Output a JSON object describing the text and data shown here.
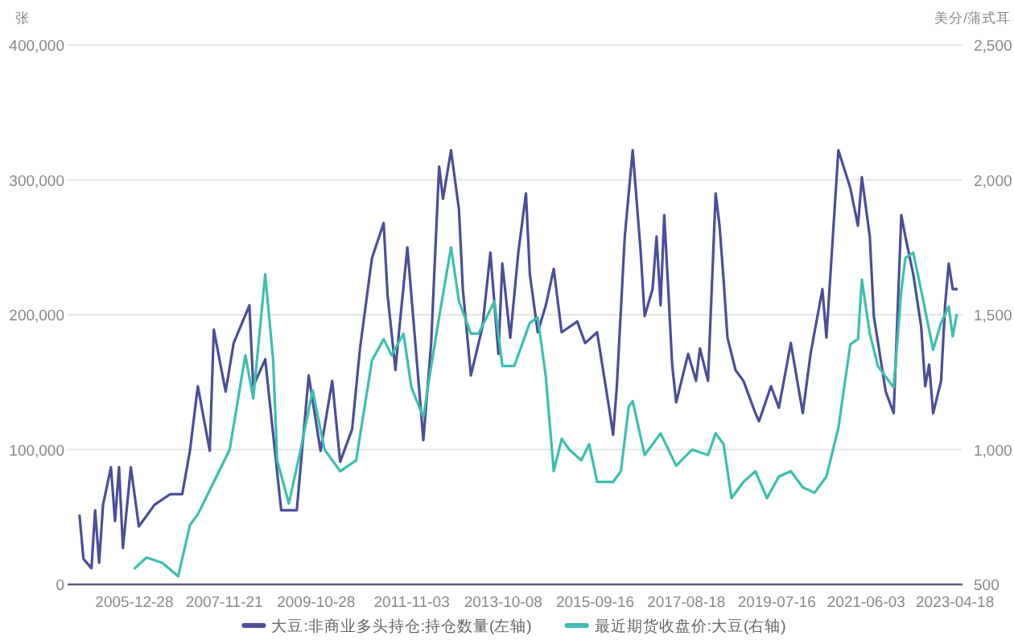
{
  "chart_data": {
    "type": "line",
    "ylabel": "张",
    "y2label": "美分/蒲式耳",
    "xlim": [
      "2004-08-01",
      "2023-06-15"
    ],
    "xticks": [
      "2005-12-28",
      "2007-11-21",
      "2009-10-28",
      "2011-11-03",
      "2013-10-08",
      "2015-09-16",
      "2017-08-18",
      "2019-07-16",
      "2021-06-03",
      "2023-04-18"
    ],
    "ylim": [
      0,
      400000
    ],
    "yticks": [
      0,
      {
        "value": 100000,
        "label": "100,000"
      },
      {
        "value": 200000,
        "label": "200,000"
      },
      {
        "value": 300000,
        "label": "300,000"
      },
      {
        "value": 400000,
        "label": "400,000"
      }
    ],
    "y2lim": [
      500,
      2500
    ],
    "y2ticks": [
      500,
      {
        "value": 1000,
        "label": "1,000"
      },
      {
        "value": 1500,
        "label": "1,500"
      },
      {
        "value": 2000,
        "label": "2,000"
      },
      {
        "value": 2500,
        "label": "2,500"
      }
    ],
    "grid": "y",
    "legend": "bottom",
    "series": [
      {
        "name": "大豆:非商业多头持仓:持仓数量(左轴)",
        "color": "#4a4e9a",
        "axis": "y",
        "x": [
          "2004-11",
          "2004-12",
          "2005-02",
          "2005-03",
          "2005-04",
          "2005-05",
          "2005-07",
          "2005-08",
          "2005-09",
          "2005-10",
          "2005-12",
          "2006-02",
          "2006-06",
          "2006-10",
          "2007-01",
          "2007-03",
          "2007-05",
          "2007-08",
          "2007-09",
          "2007-12",
          "2008-02",
          "2008-06",
          "2008-07",
          "2008-10",
          "2009-02",
          "2009-06",
          "2009-09",
          "2009-12",
          "2010-03",
          "2010-05",
          "2010-08",
          "2010-10",
          "2011-01",
          "2011-04",
          "2011-05",
          "2011-07",
          "2011-08",
          "2011-10",
          "2011-12",
          "2012-02",
          "2012-04",
          "2012-06",
          "2012-07",
          "2012-09",
          "2012-11",
          "2012-12",
          "2013-02",
          "2013-05",
          "2013-07",
          "2013-09",
          "2013-10",
          "2013-12",
          "2014-02",
          "2014-04",
          "2014-05",
          "2014-07",
          "2014-09",
          "2014-11",
          "2015-01",
          "2015-05",
          "2015-07",
          "2015-10",
          "2016-01",
          "2016-02",
          "2016-03",
          "2016-05",
          "2016-07",
          "2016-09",
          "2016-10",
          "2016-12",
          "2017-01",
          "2017-02",
          "2017-03",
          "2017-04",
          "2017-05",
          "2017-06",
          "2017-09",
          "2017-11",
          "2017-12",
          "2018-02",
          "2018-04",
          "2018-05",
          "2018-06",
          "2018-07",
          "2018-09",
          "2018-11",
          "2019-02",
          "2019-03",
          "2019-06",
          "2019-08",
          "2019-11",
          "2020-02",
          "2020-04",
          "2020-07",
          "2020-08",
          "2020-11",
          "2021-02",
          "2021-04",
          "2021-05",
          "2021-07",
          "2021-08",
          "2021-11",
          "2022-01",
          "2022-03",
          "2022-04",
          "2022-06",
          "2022-08",
          "2022-09",
          "2022-10",
          "2022-11",
          "2023-01",
          "2023-02",
          "2023-03",
          "2023-04",
          "2023-05"
        ],
        "values": [
          51000,
          19000,
          12000,
          55000,
          16000,
          59000,
          87000,
          47000,
          87000,
          27000,
          87000,
          43000,
          59000,
          67000,
          67000,
          99000,
          147000,
          99000,
          189000,
          143000,
          179000,
          207000,
          147000,
          167000,
          55000,
          55000,
          155000,
          99000,
          151000,
          91000,
          115000,
          175000,
          242000,
          268000,
          215000,
          159000,
          191000,
          250000,
          179000,
          107000,
          179000,
          310000,
          286000,
          322000,
          278000,
          219000,
          155000,
          191000,
          246000,
          171000,
          238000,
          183000,
          246000,
          290000,
          230000,
          187000,
          207000,
          234000,
          187000,
          195000,
          179000,
          187000,
          131000,
          111000,
          147000,
          258000,
          322000,
          246000,
          199000,
          219000,
          258000,
          207000,
          274000,
          219000,
          163000,
          135000,
          171000,
          151000,
          175000,
          151000,
          290000,
          266000,
          226000,
          183000,
          159000,
          151000,
          127000,
          121000,
          147000,
          131000,
          179000,
          127000,
          171000,
          219000,
          183000,
          322000,
          294000,
          266000,
          302000,
          258000,
          199000,
          143000,
          127000,
          274000,
          258000,
          230000,
          191000,
          147000,
          163000,
          127000,
          151000,
          207000,
          238000,
          219000,
          219000
        ]
      },
      {
        "name": "最近期货收盘价:大豆(右轴)",
        "color": "#3cbfae",
        "axis": "y2",
        "x": [
          "2006-01",
          "2006-04",
          "2006-08",
          "2006-12",
          "2007-03",
          "2007-05",
          "2007-09",
          "2008-01",
          "2008-05",
          "2008-07",
          "2008-10",
          "2008-12",
          "2009-01",
          "2009-04",
          "2009-07",
          "2009-10",
          "2010-01",
          "2010-05",
          "2010-09",
          "2011-01",
          "2011-04",
          "2011-06",
          "2011-09",
          "2011-11",
          "2012-02",
          "2012-04",
          "2012-06",
          "2012-09",
          "2012-11",
          "2013-02",
          "2013-04",
          "2013-06",
          "2013-08",
          "2013-10",
          "2014-01",
          "2014-05",
          "2014-07",
          "2014-09",
          "2014-11",
          "2015-01",
          "2015-03",
          "2015-06",
          "2015-08",
          "2015-10",
          "2016-02",
          "2016-04",
          "2016-06",
          "2016-07",
          "2016-10",
          "2017-02",
          "2017-06",
          "2017-10",
          "2018-02",
          "2018-04",
          "2018-06",
          "2018-08",
          "2018-11",
          "2019-02",
          "2019-05",
          "2019-08",
          "2019-11",
          "2020-02",
          "2020-05",
          "2020-08",
          "2020-11",
          "2021-02",
          "2021-04",
          "2021-05",
          "2021-07",
          "2021-09",
          "2022-01",
          "2022-03",
          "2022-04",
          "2022-06",
          "2022-08",
          "2022-11",
          "2023-01",
          "2023-03",
          "2023-04",
          "2023-05"
        ],
        "values": [
          560,
          600,
          580,
          530,
          720,
          760,
          880,
          1000,
          1350,
          1190,
          1650,
          1330,
          960,
          800,
          1000,
          1220,
          1000,
          920,
          960,
          1330,
          1410,
          1350,
          1430,
          1230,
          1120,
          1310,
          1490,
          1750,
          1550,
          1430,
          1430,
          1490,
          1550,
          1310,
          1310,
          1470,
          1490,
          1270,
          920,
          1040,
          1000,
          960,
          1020,
          880,
          880,
          920,
          1160,
          1180,
          980,
          1060,
          940,
          1000,
          980,
          1060,
          1020,
          820,
          880,
          920,
          820,
          900,
          920,
          860,
          840,
          900,
          1080,
          1390,
          1410,
          1630,
          1430,
          1310,
          1230,
          1590,
          1710,
          1730,
          1590,
          1370,
          1470,
          1530,
          1420,
          1500
        ]
      }
    ]
  }
}
